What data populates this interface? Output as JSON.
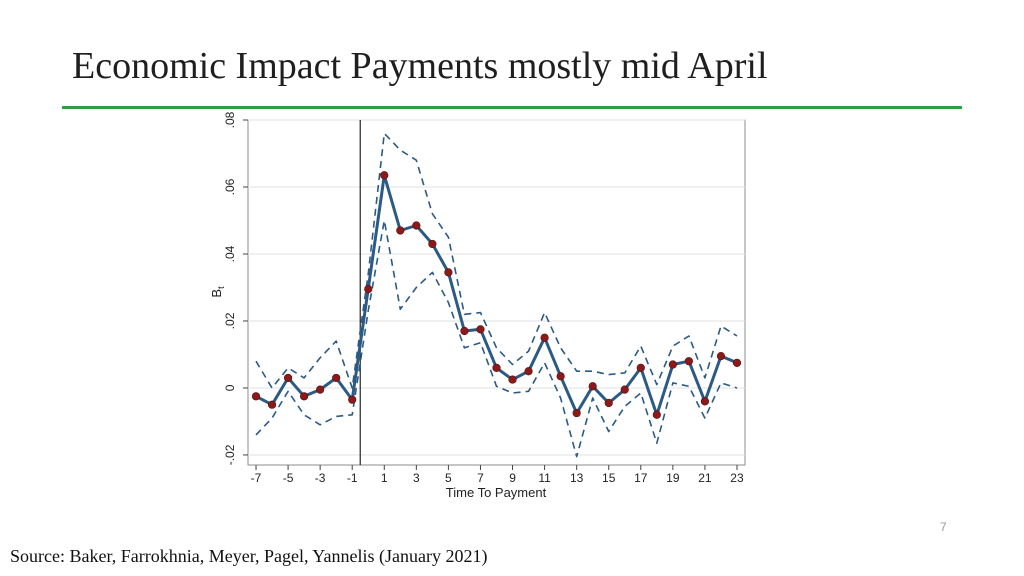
{
  "slide": {
    "title": "Economic Impact Payments mostly mid April",
    "page_number": "7",
    "source": "Source: Baker, Farrokhnia, Meyer, Pagel, Yannelis (January 2021)",
    "accent_color": "#2e9e48"
  },
  "chart_data": {
    "type": "line",
    "title": "",
    "xlabel": "Time To Payment",
    "ylabel": "B",
    "ylabel_subscript": "t",
    "xlim": [
      -7.5,
      23.5
    ],
    "ylim": [
      -0.023,
      0.08
    ],
    "x_ticks": [
      -7,
      -5,
      -3,
      -1,
      1,
      3,
      5,
      7,
      9,
      11,
      13,
      15,
      17,
      19,
      21,
      23
    ],
    "x_tick_labels": [
      "-7",
      "-5",
      "-3",
      "-1",
      "1",
      "3",
      "5",
      "7",
      "9",
      "11",
      "13",
      "15",
      "17",
      "19",
      "21",
      "23"
    ],
    "y_ticks": [
      -0.02,
      0,
      0.02,
      0.04,
      0.06,
      0.08
    ],
    "y_tick_labels": [
      "-.02",
      "0",
      ".02",
      ".04",
      ".06",
      ".08"
    ],
    "grid": true,
    "vline_x": -0.5,
    "x": [
      -7,
      -6,
      -5,
      -4,
      -3,
      -2,
      -1,
      0,
      1,
      2,
      3,
      4,
      5,
      6,
      7,
      8,
      9,
      10,
      11,
      12,
      13,
      14,
      15,
      16,
      17,
      18,
      19,
      20,
      21,
      22,
      23
    ],
    "series": [
      {
        "role": "estimate",
        "color": "#2b5a84",
        "marker_color": "#8b1a1a",
        "values": [
          -0.0025,
          -0.005,
          0.003,
          -0.0025,
          -0.0005,
          0.003,
          -0.0035,
          0.0295,
          0.0635,
          0.047,
          0.0485,
          0.043,
          0.0345,
          0.017,
          0.0175,
          0.006,
          0.0025,
          0.005,
          0.015,
          0.0035,
          -0.0075,
          0.0005,
          -0.0045,
          -0.0005,
          0.006,
          -0.008,
          0.007,
          0.008,
          -0.004,
          0.0095,
          0.0075
        ]
      },
      {
        "role": "upper_ci",
        "color": "#2b5a84",
        "values": [
          0.008,
          0.0,
          0.006,
          0.003,
          0.009,
          0.014,
          0.0,
          0.034,
          0.076,
          0.071,
          0.068,
          0.052,
          0.045,
          0.022,
          0.0225,
          0.012,
          0.007,
          0.011,
          0.0225,
          0.012,
          0.005,
          0.005,
          0.004,
          0.0045,
          0.0125,
          0.001,
          0.0125,
          0.0155,
          0.003,
          0.0185,
          0.0155
        ]
      },
      {
        "role": "lower_ci",
        "color": "#2b5a84",
        "values": [
          -0.014,
          -0.009,
          -0.001,
          -0.008,
          -0.011,
          -0.0085,
          -0.008,
          0.023,
          0.05,
          0.0235,
          0.03,
          0.0345,
          0.0255,
          0.012,
          0.0135,
          0.0005,
          -0.0015,
          -0.001,
          0.0075,
          -0.003,
          -0.0205,
          -0.003,
          -0.013,
          -0.0055,
          -0.0015,
          -0.0165,
          0.0015,
          0.0005,
          -0.009,
          0.0015,
          0.0
        ]
      }
    ]
  }
}
